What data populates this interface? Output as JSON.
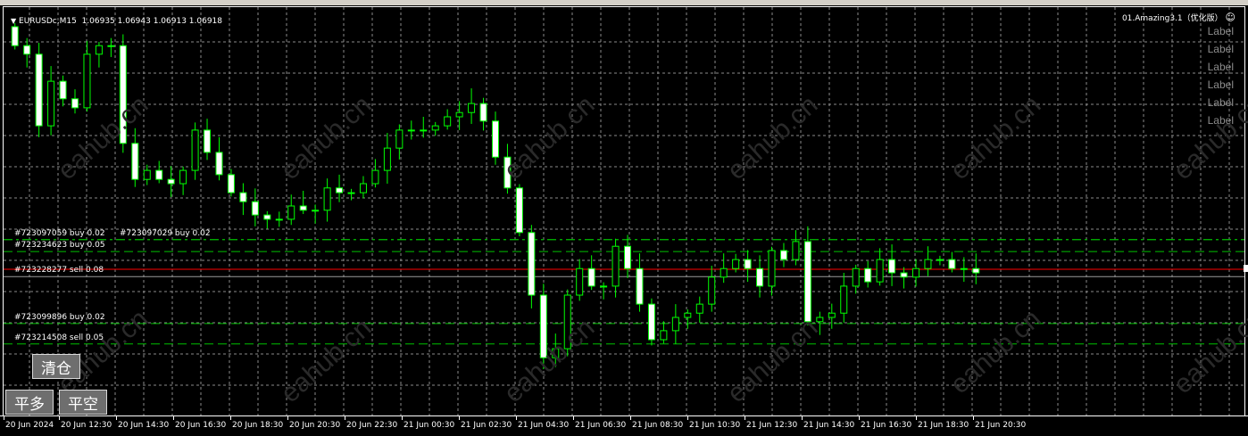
{
  "header": {
    "symbol": "EURUSDc,M15",
    "ohlc": "1.06935 1.06943 1.06913 1.06918"
  },
  "ea": {
    "name": "01.Amazing3.1（优化版）",
    "status_icon": "smiley-icon"
  },
  "labels": [
    "Label",
    "Label",
    "Label",
    "Label",
    "Label",
    "Label"
  ],
  "watermark": "eahub.cn",
  "orders": [
    {
      "text": "#723097059 buy 0.02",
      "price": 1.06988,
      "style": "dashdot"
    },
    {
      "text": "#723097029 buy 0.02",
      "price": 1.06988,
      "style": "dashdot"
    },
    {
      "text": "#723234623 buy 0.05",
      "price": 1.06963,
      "style": "dash"
    },
    {
      "text": "#723228277 sell 0.08",
      "price": 1.0691,
      "style": "solid-gray"
    },
    {
      "text": "#723099896 buy 0.02",
      "price": 1.06811,
      "style": "dash"
    },
    {
      "text": "#723214508 sell 0.05",
      "price": 1.06768,
      "style": "dash"
    }
  ],
  "bid_line": {
    "price": 1.06918,
    "color": "#ff0000"
  },
  "buttons": {
    "close_all": "清仓",
    "close_long": "平多",
    "close_short": "平空"
  },
  "time_axis": [
    "20 Jun 2024",
    "20 Jun 12:30",
    "20 Jun 14:30",
    "20 Jun 16:30",
    "20 Jun 18:30",
    "20 Jun 20:30",
    "20 Jun 22:30",
    "21 Jun 00:30",
    "21 Jun 02:30",
    "21 Jun 04:30",
    "21 Jun 06:30",
    "21 Jun 08:30",
    "21 Jun 10:30",
    "21 Jun 12:30",
    "21 Jun 14:30",
    "21 Jun 16:30",
    "21 Jun 18:30",
    "21 Jun 20:30"
  ],
  "colors": {
    "background": "#000000",
    "candle": "#00ff00",
    "bear_fill": "#ffffff",
    "grid": "#8a8a8a",
    "order_line": "#00c000"
  },
  "chart_data": {
    "type": "candlestick",
    "symbol": "EURUSDc",
    "timeframe": "M15",
    "closes": [
      1.07397,
      1.07379,
      1.07228,
      1.07322,
      1.07285,
      1.07266,
      1.07379,
      1.07397,
      1.07397,
      1.07191,
      1.07115,
      1.07134,
      1.07115,
      1.07106,
      1.07134,
      1.07219,
      1.07172,
      1.07125,
      1.07087,
      1.07068,
      1.0704,
      1.07031,
      1.07031,
      1.07059,
      1.0705,
      1.0705,
      1.07097,
      1.07087,
      1.07087,
      1.07106,
      1.07134,
      1.07181,
      1.07219,
      1.07219,
      1.07219,
      1.07228,
      1.07247,
      1.07256,
      1.07275,
      1.07238,
      1.07162,
      1.07097,
      1.07003,
      1.06871,
      1.06739,
      1.06758,
      1.06871,
      1.06927,
      1.0689,
      1.0689,
      1.06974,
      1.06927,
      1.06852,
      1.06777,
      1.06796,
      1.06824,
      1.06833,
      1.06852,
      1.06909,
      1.06927,
      1.06946,
      1.06927,
      1.0689,
      1.06965,
      1.06946,
      1.06984,
      1.06815,
      1.06824,
      1.06833,
      1.0689,
      1.06927,
      1.06899,
      1.06946,
      1.06918,
      1.06909,
      1.06927,
      1.06946,
      1.06946,
      1.06927,
      1.06927,
      1.06918
    ],
    "grid": true
  }
}
